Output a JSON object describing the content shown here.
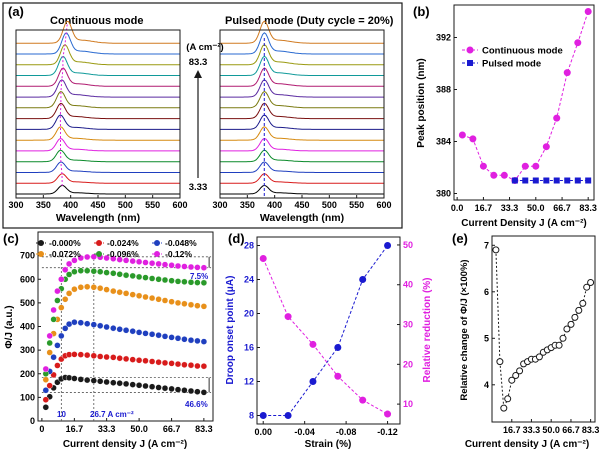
{
  "chart_data": [
    {
      "panel": "(a)",
      "type": "line",
      "subtitle_left": "Continuous mode",
      "subtitle_right": "Pulsed  mode (Duty cycle = 20%)",
      "xlabel": "Wavelength (nm)",
      "x_ticks": [
        "300",
        "350",
        "400",
        "450",
        "500",
        "550",
        "600"
      ],
      "xlim": [
        300,
        600
      ],
      "annotation_unit": "(A cm⁻²)",
      "annotation_top": "83.3",
      "annotation_bottom": "3.33",
      "series_colors": [
        "#000000",
        "#d81b1b",
        "#1f3fbf",
        "#0a8a2a",
        "#e020e0",
        "#d68a10",
        "#1a1a8a",
        "#7a1010",
        "#7a7a10",
        "#5a2aa0",
        "#b01a70",
        "#109a9a",
        "#9a9a10",
        "#2a6ad0",
        "#d07a20"
      ],
      "continuous_peak_nm": [
        384.5,
        384.2,
        382.1,
        381.4,
        381.4,
        381.0,
        382.1,
        382.1,
        383.6,
        385.8,
        389.3,
        391.6,
        394.0
      ],
      "pulsed_peak_nm": 381.0
    },
    {
      "panel": "(b)",
      "type": "line",
      "xlabel": "Current Density J (A cm⁻²)",
      "ylabel": "Peak position (nm)",
      "x_ticks": [
        "0.0",
        "16.7",
        "33.3",
        "50.0",
        "66.7",
        "83.3"
      ],
      "y_ticks": [
        "380",
        "384",
        "388",
        "392"
      ],
      "xlim": [
        -2,
        87
      ],
      "ylim": [
        379.5,
        394.5
      ],
      "legend_position": "top-left",
      "series": [
        {
          "name": "Continuous mode",
          "color": "#e020e0",
          "marker": "circle",
          "x": [
            3.33,
            10,
            16.7,
            23.3,
            30,
            36.7,
            43.3,
            50,
            56.7,
            63.3,
            70,
            76.7,
            83.3
          ],
          "y": [
            384.5,
            384.2,
            382.1,
            381.4,
            381.4,
            381.0,
            382.1,
            382.1,
            383.6,
            385.8,
            389.3,
            391.6,
            394.0
          ]
        },
        {
          "name": "Pulsed mode",
          "color": "#1a1ad0",
          "marker": "square",
          "x": [
            36.7,
            43.3,
            50,
            56.7,
            63.3,
            70,
            76.7,
            83.3
          ],
          "y": [
            381.0,
            381.0,
            381.0,
            381.0,
            381.0,
            381.0,
            381.0,
            381.0
          ]
        }
      ]
    },
    {
      "panel": "(c)",
      "type": "scatter",
      "xlabel": "Current density J (A cm⁻²)",
      "ylabel": "Φ/J (a.u.)",
      "x_ticks": [
        "0",
        "16.7",
        "33.3",
        "50.0",
        "66.7",
        "83.3"
      ],
      "y_ticks": [
        "0",
        "100",
        "200",
        "300",
        "400",
        "500",
        "600",
        "700"
      ],
      "xlim": [
        -2,
        88
      ],
      "ylim": [
        0,
        800
      ],
      "legend_position": "top",
      "annotations": {
        "top_pct": "7.5%",
        "bottom_pct": "46.6%",
        "v1": "10",
        "v2": "26.7 A cm⁻²"
      },
      "series": [
        {
          "name": "-0.000%",
          "color": "#1a1a1a",
          "x": [
            2,
            4,
            6,
            8,
            10,
            12,
            14,
            16.7,
            20,
            23.3,
            26.7,
            30,
            33.3,
            36.7,
            40,
            43.3,
            46.7,
            50,
            53.3,
            56.7,
            60,
            63.3,
            66.7,
            70,
            73.3,
            76.7,
            80,
            83.3
          ],
          "y": [
            58,
            103,
            140,
            164,
            178,
            184,
            183,
            180,
            176,
            173,
            171,
            168,
            165,
            162,
            160,
            157,
            154,
            151,
            148,
            145,
            142,
            139,
            136,
            133,
            130,
            127,
            124,
            121
          ]
        },
        {
          "name": "-0.024%",
          "color": "#d81b1b",
          "x": [
            2,
            4,
            6,
            8,
            10,
            12,
            14,
            16.7,
            20,
            23.3,
            26.7,
            30,
            33.3,
            36.7,
            40,
            43.3,
            46.7,
            50,
            53.3,
            56.7,
            60,
            63.3,
            66.7,
            70,
            73.3,
            76.7,
            80,
            83.3
          ],
          "y": [
            90,
            150,
            195,
            235,
            262,
            276,
            281,
            282,
            281,
            279,
            276,
            273,
            271,
            269,
            266,
            263,
            260,
            257,
            255,
            252,
            249,
            246,
            244,
            241,
            238,
            236,
            233,
            232
          ]
        },
        {
          "name": "-0.048%",
          "color": "#1f3fbf",
          "x": [
            2,
            4,
            6,
            8,
            10,
            12,
            14,
            16.7,
            20,
            23.3,
            26.7,
            30,
            33.3,
            36.7,
            40,
            43.3,
            46.7,
            50,
            53.3,
            56.7,
            60,
            63.3,
            66.7,
            70,
            73.3,
            76.7,
            80,
            83.3
          ],
          "y": [
            130,
            210,
            270,
            320,
            360,
            392,
            410,
            418,
            416,
            412,
            408,
            403,
            398,
            393,
            388,
            384,
            380,
            375,
            371,
            367,
            363,
            358,
            354,
            350,
            346,
            342,
            339,
            336
          ]
        },
        {
          "name": "-0.072%",
          "color": "#e8901a",
          "x": [
            2,
            4,
            6,
            8,
            10,
            12,
            14,
            16.7,
            20,
            23.3,
            26.7,
            30,
            33.3,
            36.7,
            40,
            43.3,
            46.7,
            50,
            53.3,
            56.7,
            60,
            63.3,
            66.7,
            70,
            73.3,
            76.7,
            80,
            83.3
          ],
          "y": [
            175,
            290,
            370,
            430,
            480,
            515,
            540,
            558,
            566,
            568,
            566,
            562,
            556,
            550,
            545,
            540,
            535,
            530,
            525,
            520,
            515,
            510,
            505,
            500,
            496,
            492,
            488,
            485
          ]
        },
        {
          "name": "-0.096%",
          "color": "#2a9a2a",
          "x": [
            2,
            4,
            6,
            8,
            10,
            12,
            14,
            16.7,
            20,
            23.3,
            26.7,
            30,
            33.3,
            36.7,
            40,
            43.3,
            46.7,
            50,
            53.3,
            56.7,
            60,
            63.3,
            66.7,
            70,
            73.3,
            76.7,
            80,
            83.3
          ],
          "y": [
            200,
            330,
            430,
            510,
            560,
            600,
            620,
            632,
            636,
            636,
            634,
            632,
            628,
            625,
            621,
            617,
            614,
            610,
            607,
            603,
            600,
            597,
            594,
            591,
            589,
            587,
            586,
            585
          ]
        },
        {
          "name": "-0.12%",
          "color": "#e020e0",
          "x": [
            2,
            4,
            6,
            8,
            10,
            12,
            14,
            16.7,
            20,
            23.3,
            26.7,
            30,
            33.3,
            36.7,
            40,
            43.3,
            46.7,
            50,
            53.3,
            56.7,
            60,
            63.3,
            66.7,
            70,
            73.3,
            76.7,
            80,
            83.3
          ],
          "y": [
            220,
            360,
            470,
            550,
            600,
            640,
            665,
            680,
            690,
            694,
            695,
            693,
            690,
            687,
            683,
            680,
            677,
            674,
            671,
            668,
            665,
            662,
            659,
            656,
            654,
            652,
            650,
            649
          ]
        }
      ]
    },
    {
      "panel": "(d)",
      "type": "line",
      "xlabel": "Strain (%)",
      "ylabel": "Droop onset point (μA)",
      "ylabel_right": "Relative reduction (%)",
      "x_ticks": [
        "0.00",
        "-0.04",
        "-0.08",
        "-0.12"
      ],
      "y_ticks": [
        "8",
        "12",
        "16",
        "20",
        "24",
        "28"
      ],
      "y2_ticks": [
        "10",
        "20",
        "30",
        "40",
        "50"
      ],
      "xlim": [
        0.006,
        -0.132
      ],
      "ylim": [
        7,
        29
      ],
      "y2lim": [
        5,
        52
      ],
      "series": [
        {
          "color": "#1a1ad0",
          "axis": "left",
          "x": [
            0,
            -0.024,
            -0.048,
            -0.072,
            -0.096,
            -0.12
          ],
          "y": [
            8,
            8,
            12,
            16,
            24,
            28
          ]
        },
        {
          "color": "#e020e0",
          "axis": "right",
          "x": [
            0,
            -0.024,
            -0.048,
            -0.072,
            -0.096,
            -0.12
          ],
          "y": [
            46.6,
            32,
            25,
            17,
            11,
            7.5
          ]
        }
      ]
    },
    {
      "panel": "(e)",
      "type": "scatter",
      "xlabel": "Current density J (A cm⁻²)",
      "ylabel": "Relative change of Φ/J (×100%)",
      "x_ticks": [
        "16.7",
        "33.3",
        "50.0",
        "66.7",
        "83.3"
      ],
      "y_ticks": [
        "4",
        "5",
        "6",
        "7"
      ],
      "xlim": [
        0,
        87
      ],
      "ylim": [
        3.2,
        7.2
      ],
      "series": [
        {
          "color": "#1a1a1a",
          "x": [
            3.33,
            6.67,
            10,
            13.3,
            16.7,
            20,
            23.3,
            26.7,
            30,
            33.3,
            36.7,
            40,
            43.3,
            46.7,
            50,
            53.3,
            56.7,
            60,
            63.3,
            66.7,
            70,
            73.3,
            76.7,
            80,
            83.3
          ],
          "y": [
            6.9,
            4.5,
            3.5,
            3.7,
            4.1,
            4.2,
            4.3,
            4.45,
            4.5,
            4.55,
            4.55,
            4.6,
            4.7,
            4.75,
            4.8,
            4.85,
            4.85,
            5.0,
            5.2,
            5.3,
            5.45,
            5.6,
            5.75,
            6.1,
            6.2
          ]
        }
      ]
    }
  ]
}
